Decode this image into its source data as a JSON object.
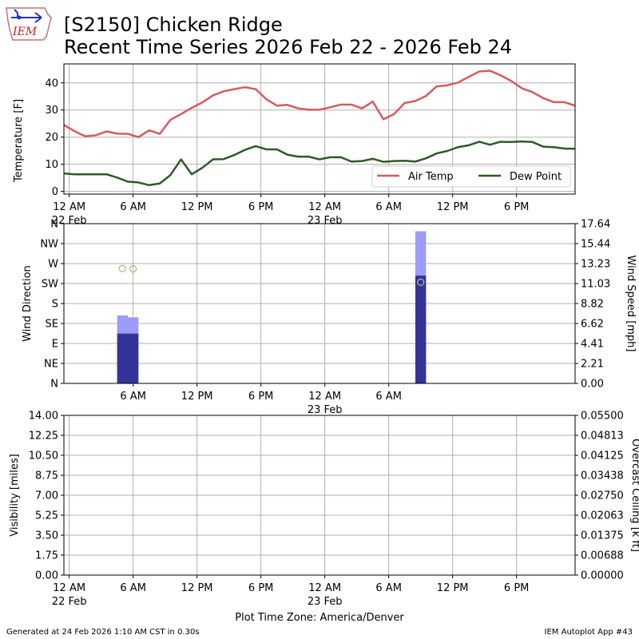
{
  "header": {
    "title_line1": "[S2150] Chicken Ridge",
    "title_line2": "Recent Time Series 2026 Feb 22 - 2026 Feb 24",
    "logo_text": "IEM"
  },
  "footer": {
    "generated": "Generated at 24 Feb 2026 1:10 AM CST in 0.30s",
    "app": "IEM Autoplot App #43",
    "timezone": "Plot Time Zone: America/Denver"
  },
  "colors": {
    "air_temp": "#d9595d",
    "dew_point": "#2d5a27",
    "wind_light": "#9b9bf9",
    "wind_dark": "#333399",
    "dir_marker": "#b5b57a",
    "grid": "#b0b0b0",
    "ceiling_label": "#008000"
  },
  "chart_data": [
    {
      "type": "line",
      "ylabel": "Temperature [F]",
      "ylim": [
        -1,
        47
      ],
      "yticks": [
        "0",
        "10",
        "20",
        "30",
        "40"
      ],
      "xlim": [
        -0.5,
        47.5
      ],
      "xticks": [
        {
          "h": 0,
          "label": "12 AM",
          "sub": "22 Feb"
        },
        {
          "h": 6,
          "label": "6 AM"
        },
        {
          "h": 12,
          "label": "12 PM"
        },
        {
          "h": 18,
          "label": "6 PM"
        },
        {
          "h": 24,
          "label": "12 AM",
          "sub": "23 Feb"
        },
        {
          "h": 30,
          "label": "6 AM"
        },
        {
          "h": 36,
          "label": "12 PM"
        },
        {
          "h": 42,
          "label": "6 PM"
        }
      ],
      "legend": {
        "position": "lower-right",
        "columns": 2
      },
      "x_hours": [
        -0.5,
        0.5,
        1.5,
        2.5,
        3.5,
        4.5,
        5.5,
        6.5,
        7.5,
        8.5,
        9.5,
        10.5,
        11.5,
        12.5,
        13.5,
        14.5,
        15.5,
        16.5,
        17.5,
        18.5,
        19.5,
        20.5,
        21.5,
        22.5,
        23.5,
        24.5,
        25.5,
        26.5,
        27.5,
        28.5,
        29.5,
        30.5,
        31.5,
        32.5,
        33.5,
        34.5,
        35.5,
        36.5,
        37.5,
        38.5,
        39.5,
        40.5,
        41.5,
        42.5,
        43.5,
        44.5,
        45.5,
        46.5,
        47.5
      ],
      "series": [
        {
          "name": "Air Temp",
          "values": [
            24.5,
            22.2,
            20.3,
            20.7,
            22.1,
            21.3,
            21.2,
            20.0,
            22.5,
            21.2,
            26.4,
            28.5,
            30.8,
            32.8,
            35.4,
            36.9,
            37.7,
            38.4,
            37.7,
            34.0,
            31.6,
            31.9,
            30.6,
            30.1,
            30.1,
            31.0,
            32.0,
            32.0,
            30.6,
            33.1,
            26.6,
            28.5,
            32.6,
            33.3,
            35.2,
            38.7,
            39.1,
            40.1,
            42.2,
            44.2,
            44.5,
            42.8,
            40.7,
            38.0,
            36.6,
            34.4,
            32.9,
            32.9,
            31.6
          ]
        },
        {
          "name": "Dew Point",
          "values": [
            6.6,
            6.3,
            6.3,
            6.3,
            6.3,
            5.1,
            3.6,
            3.3,
            2.3,
            2.9,
            6.0,
            11.8,
            6.3,
            8.7,
            11.8,
            11.9,
            13.4,
            15.3,
            16.7,
            15.5,
            15.5,
            13.5,
            12.8,
            12.8,
            11.8,
            12.6,
            12.6,
            11.0,
            11.2,
            12.0,
            10.9,
            11.2,
            11.3,
            11.0,
            12.2,
            14.0,
            14.9,
            16.3,
            17.0,
            18.3,
            17.2,
            18.3,
            18.2,
            18.4,
            18.2,
            16.5,
            16.3,
            15.8,
            15.7
          ]
        }
      ]
    },
    {
      "type": "bar",
      "ylabel": "Wind Direction",
      "y2label": "Wind Speed [mph]",
      "ylim": [
        0,
        360
      ],
      "yticks": [
        "N",
        "NE",
        "E",
        "SE",
        "S",
        "SW",
        "W",
        "NW",
        "N"
      ],
      "y2lim": [
        0,
        17.64
      ],
      "y2ticks": [
        "0.00",
        "2.21",
        "4.41",
        "6.62",
        "8.82",
        "11.03",
        "13.23",
        "15.44",
        "17.64"
      ],
      "xlim": [
        -0.5,
        47.5
      ],
      "xticks": [
        {
          "h": 6,
          "label": "6 AM"
        },
        {
          "h": 12,
          "label": "12 PM"
        },
        {
          "h": 18,
          "label": "6 PM"
        },
        {
          "h": 24,
          "label": "12 AM",
          "sub": "23 Feb"
        },
        {
          "h": 30,
          "label": "6 AM"
        }
      ],
      "bars": [
        {
          "x_hours": 5.0,
          "gust_mph": 7.5,
          "speed_mph": 5.5
        },
        {
          "x_hours": 6.0,
          "gust_mph": 7.3,
          "speed_mph": 5.5
        },
        {
          "x_hours": 33.0,
          "gust_mph": 16.8,
          "speed_mph": 11.9
        }
      ],
      "direction_points": [
        {
          "x_hours": 5.0,
          "deg": 259
        },
        {
          "x_hours": 6.0,
          "deg": 258
        },
        {
          "x_hours": 33.0,
          "deg": 228
        }
      ]
    },
    {
      "type": "line",
      "ylabel": "Visibility [miles]",
      "y2label": "Overcast Ceiling [k ft]",
      "ylim": [
        0,
        14
      ],
      "yticks": [
        "0.00",
        "1.75",
        "3.50",
        "5.25",
        "7.00",
        "8.75",
        "10.50",
        "12.25",
        "14.00"
      ],
      "y2lim": [
        0,
        0.055
      ],
      "y2ticks": [
        "0.00000",
        "0.00688",
        "0.01375",
        "0.02063",
        "0.02750",
        "0.03438",
        "0.04125",
        "0.04813",
        "0.05500"
      ],
      "xlim": [
        -0.5,
        47.5
      ],
      "xticks": [
        {
          "h": 0,
          "label": "12 AM",
          "sub": "22 Feb"
        },
        {
          "h": 6,
          "label": "6 AM"
        },
        {
          "h": 12,
          "label": "12 PM"
        },
        {
          "h": 18,
          "label": "6 PM"
        },
        {
          "h": 24,
          "label": "12 AM",
          "sub": "23 Feb"
        },
        {
          "h": 30,
          "label": "6 AM"
        },
        {
          "h": 36,
          "label": "12 PM"
        },
        {
          "h": 42,
          "label": "6 PM"
        }
      ],
      "series": []
    }
  ]
}
